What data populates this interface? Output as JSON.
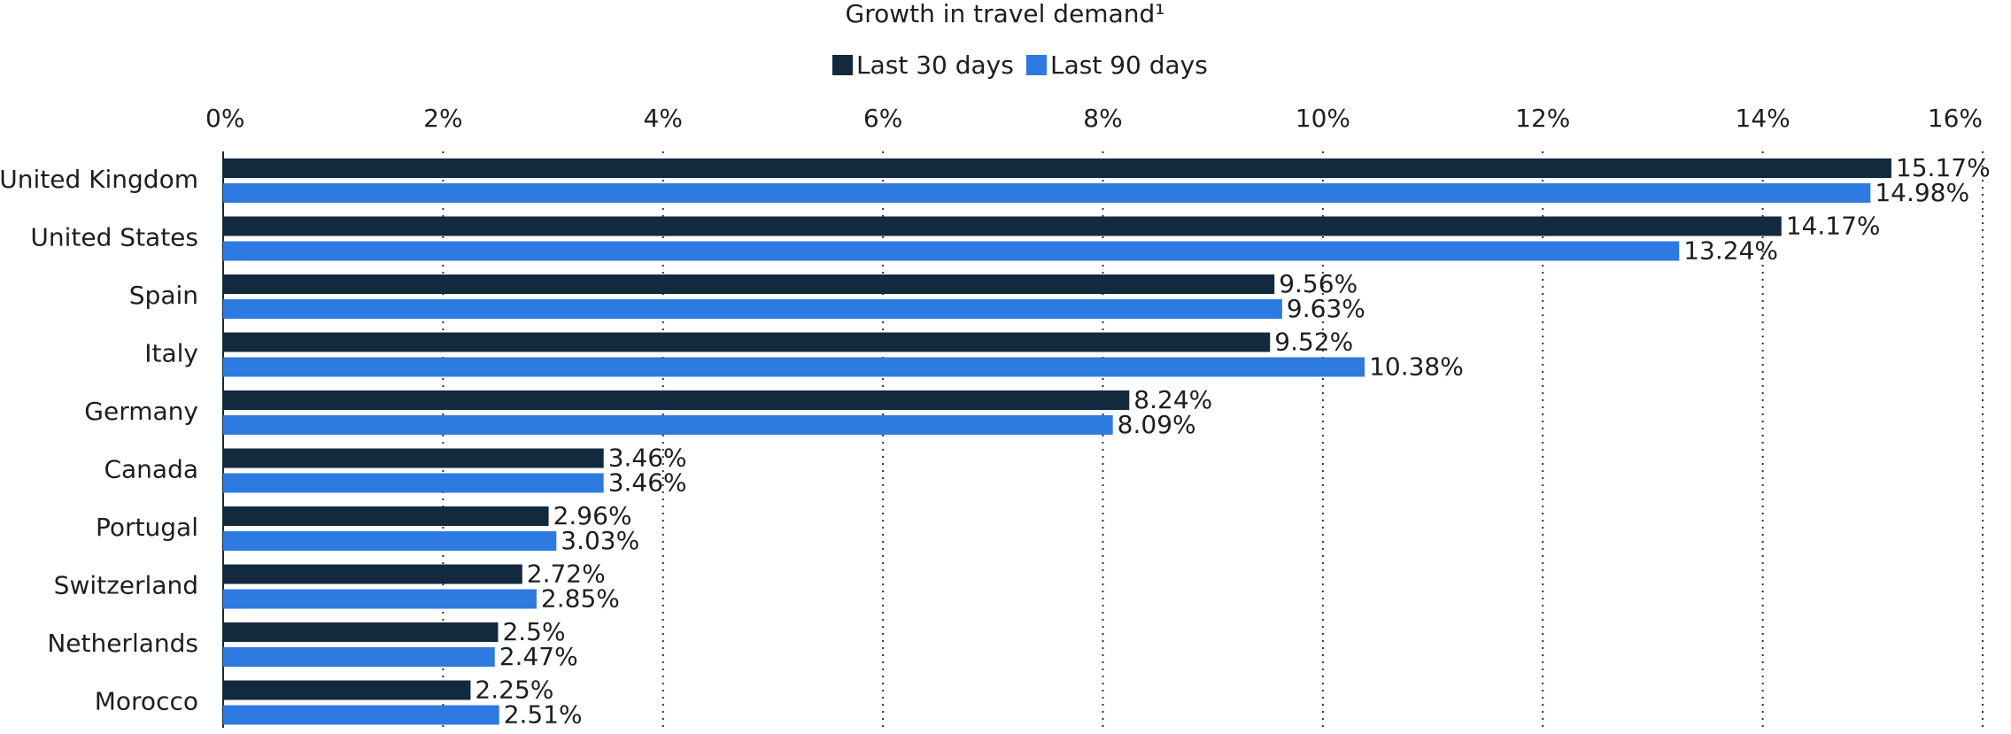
{
  "chart_data": {
    "type": "bar",
    "orientation": "horizontal",
    "title": "Growth in travel demand¹",
    "categories": [
      "United Kingdom",
      "United States",
      "Spain",
      "Italy",
      "Germany",
      "Canada",
      "Portugal",
      "Switzerland",
      "Netherlands",
      "Morocco"
    ],
    "series": [
      {
        "name": "Last 30 days",
        "color": "#13293d",
        "values": [
          15.17,
          14.17,
          9.56,
          9.52,
          8.24,
          3.46,
          2.96,
          2.72,
          2.5,
          2.25
        ],
        "value_labels": [
          "15.17%",
          "14.17%",
          "9.56%",
          "9.52%",
          "8.24%",
          "3.46%",
          "2.96%",
          "2.72%",
          "2.5%",
          "2.25%"
        ]
      },
      {
        "name": "Last 90 days",
        "color": "#2d7ae0",
        "values": [
          14.98,
          13.24,
          9.63,
          10.38,
          8.09,
          3.46,
          3.03,
          2.85,
          2.47,
          2.51
        ],
        "value_labels": [
          "14.98%",
          "13.24%",
          "9.63%",
          "10.38%",
          "8.09%",
          "3.46%",
          "3.03%",
          "2.85%",
          "2.47%",
          "2.51%"
        ]
      }
    ],
    "xlim": [
      0,
      16
    ],
    "xticks": [
      {
        "value": 0,
        "label": "0%"
      },
      {
        "value": 2,
        "label": "2%"
      },
      {
        "value": 4,
        "label": "4%"
      },
      {
        "value": 6,
        "label": "6%"
      },
      {
        "value": 8,
        "label": "8%"
      },
      {
        "value": 10,
        "label": "10%"
      },
      {
        "value": 12,
        "label": "12%"
      },
      {
        "value": 14,
        "label": "14%"
      },
      {
        "value": 16,
        "label": "16%"
      }
    ],
    "grid": true,
    "legend": "top"
  }
}
